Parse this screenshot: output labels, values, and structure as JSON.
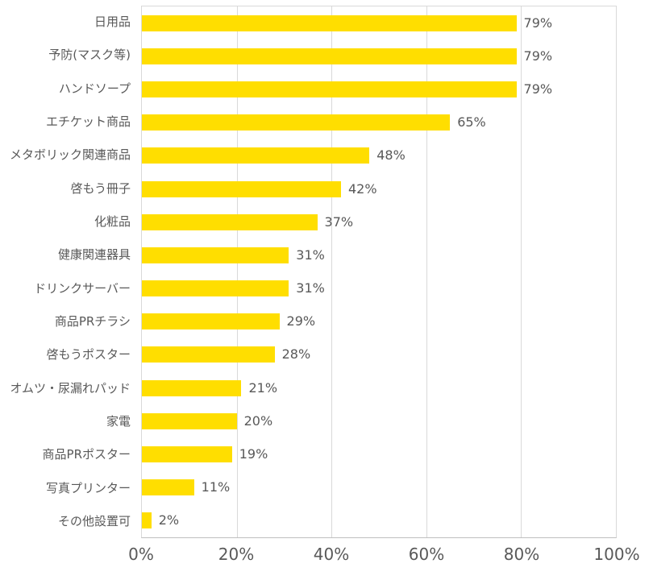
{
  "chart_data": {
    "type": "bar",
    "orientation": "horizontal",
    "title": "",
    "xlabel": "",
    "ylabel": "",
    "categories": [
      "日用品",
      "予防(マスク等)",
      "ハンドソープ",
      "エチケット商品",
      "メタボリック関連商品",
      "啓もう冊子",
      "化粧品",
      "健康関連器具",
      "ドリンクサーバー",
      "商品PRチラシ",
      "啓もうポスター",
      "オムツ・尿漏れパッド",
      "家電",
      "商品PRポスター",
      "写真プリンター",
      "その他設置可"
    ],
    "values": [
      79,
      79,
      79,
      65,
      48,
      42,
      37,
      31,
      31,
      29,
      28,
      21,
      20,
      19,
      11,
      2
    ],
    "value_labels": [
      "79%",
      "79%",
      "79%",
      "65%",
      "48%",
      "42%",
      "37%",
      "31%",
      "31%",
      "29%",
      "28%",
      "21%",
      "20%",
      "19%",
      "11%",
      "2%"
    ],
    "xlim": [
      0,
      100
    ],
    "x_ticks": [
      "0%",
      "20%",
      "40%",
      "60%",
      "80%",
      "100%"
    ],
    "x_tick_values": [
      0,
      20,
      40,
      60,
      80,
      100
    ],
    "grid": true,
    "legend": false,
    "colors": {
      "bar": "#FFDE00",
      "text": "#595959",
      "gridline": "#D9D9D9",
      "axis_line": "#BFBFBF",
      "background": "#FFFFFF"
    }
  }
}
